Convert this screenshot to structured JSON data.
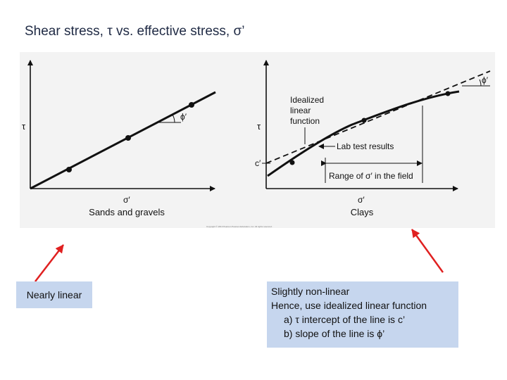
{
  "title": "Shear stress, τ  vs. effective stress, σ’",
  "left_graph": {
    "y_axis_label": "τ",
    "x_axis_label": "σ′",
    "angle_label": "ϕ′",
    "caption": "Sands and gravels"
  },
  "right_graph": {
    "y_axis_label": "τ",
    "x_axis_label": "σ′",
    "intercept_label": "c′",
    "angle_label": "ϕ′",
    "idealized_label_line1": "Idealized",
    "idealized_label_line2": "linear",
    "idealized_label_line3": "function",
    "lab_results_label": "Lab test results",
    "range_label": "Range of σ′ in the field",
    "caption": "Clays"
  },
  "copyright_text": "Copyright © 2013 Pearson    Pearson Education, Inc. All rights reserved.",
  "callout_left": {
    "text": "Nearly linear",
    "arrow_color": "#e02020"
  },
  "callout_right": {
    "line1": "Slightly non-linear",
    "line2": "Hence, use idealized linear function",
    "line3": "a) τ intercept of the line is c’",
    "line4": "b) slope of the line is ϕ’",
    "arrow_color": "#e02020"
  },
  "colors": {
    "callout_fill": "#c6d6ee",
    "title_color": "#1f2a44",
    "figure_background": "#f3f3f3"
  }
}
